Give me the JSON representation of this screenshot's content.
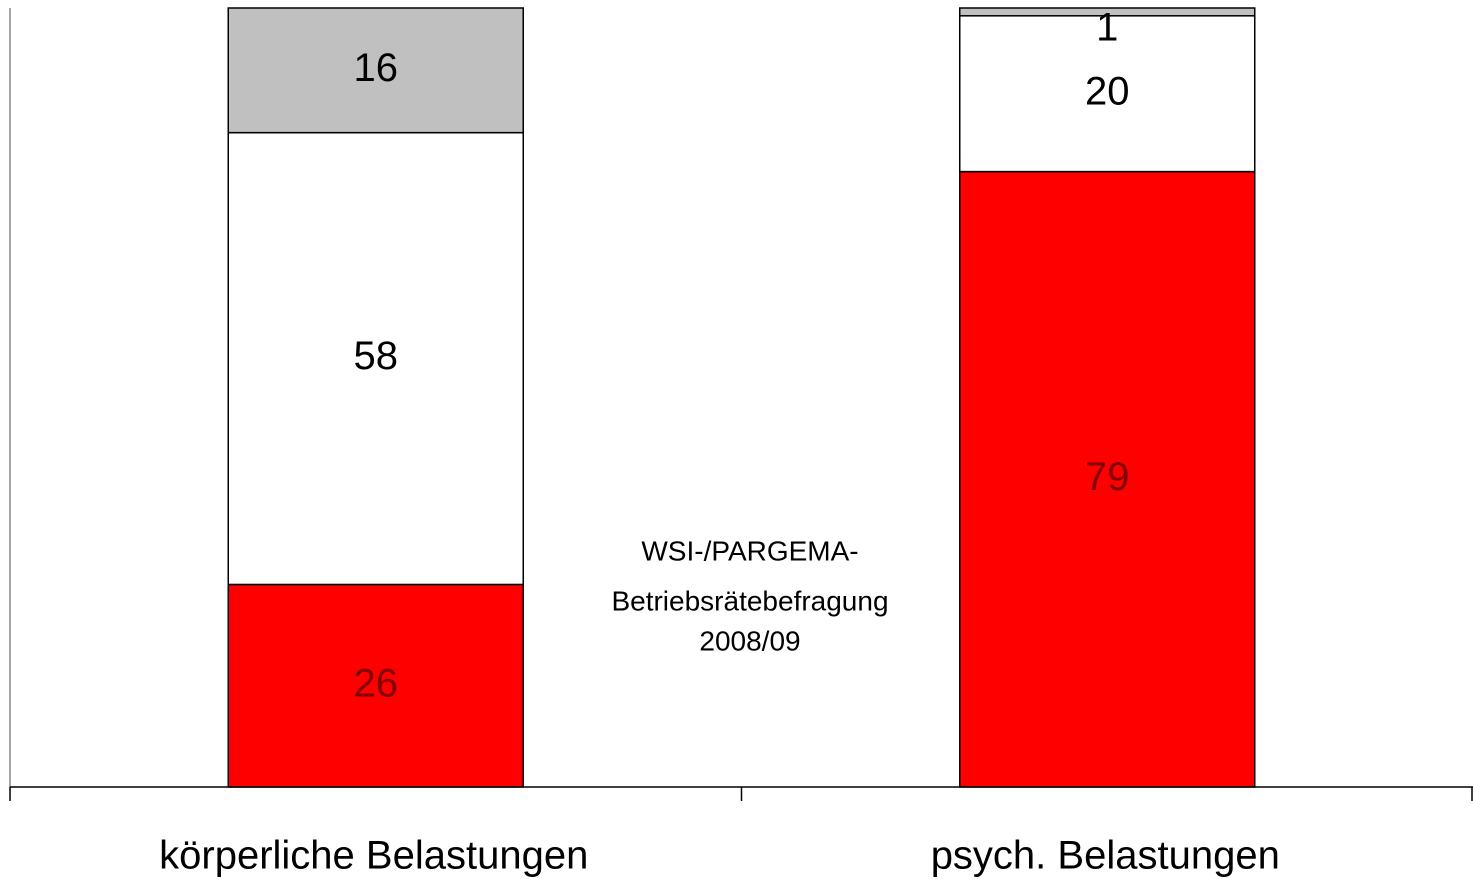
{
  "chart_data": {
    "type": "stacked_bar",
    "categories": [
      "körperliche Belastungen",
      "psych. Belastungen"
    ],
    "series": [
      {
        "color": "#ff0000",
        "values": [
          26,
          79
        ]
      },
      {
        "color": "#ffffff",
        "values": [
          58,
          20
        ]
      },
      {
        "color": "#c0c0c0",
        "values": [
          16,
          1
        ]
      }
    ],
    "ylim": [
      0,
      100
    ],
    "annotation": [
      "WSI-/PARGEMA-",
      "Betriebsrätebefragung",
      "2008/09"
    ]
  }
}
